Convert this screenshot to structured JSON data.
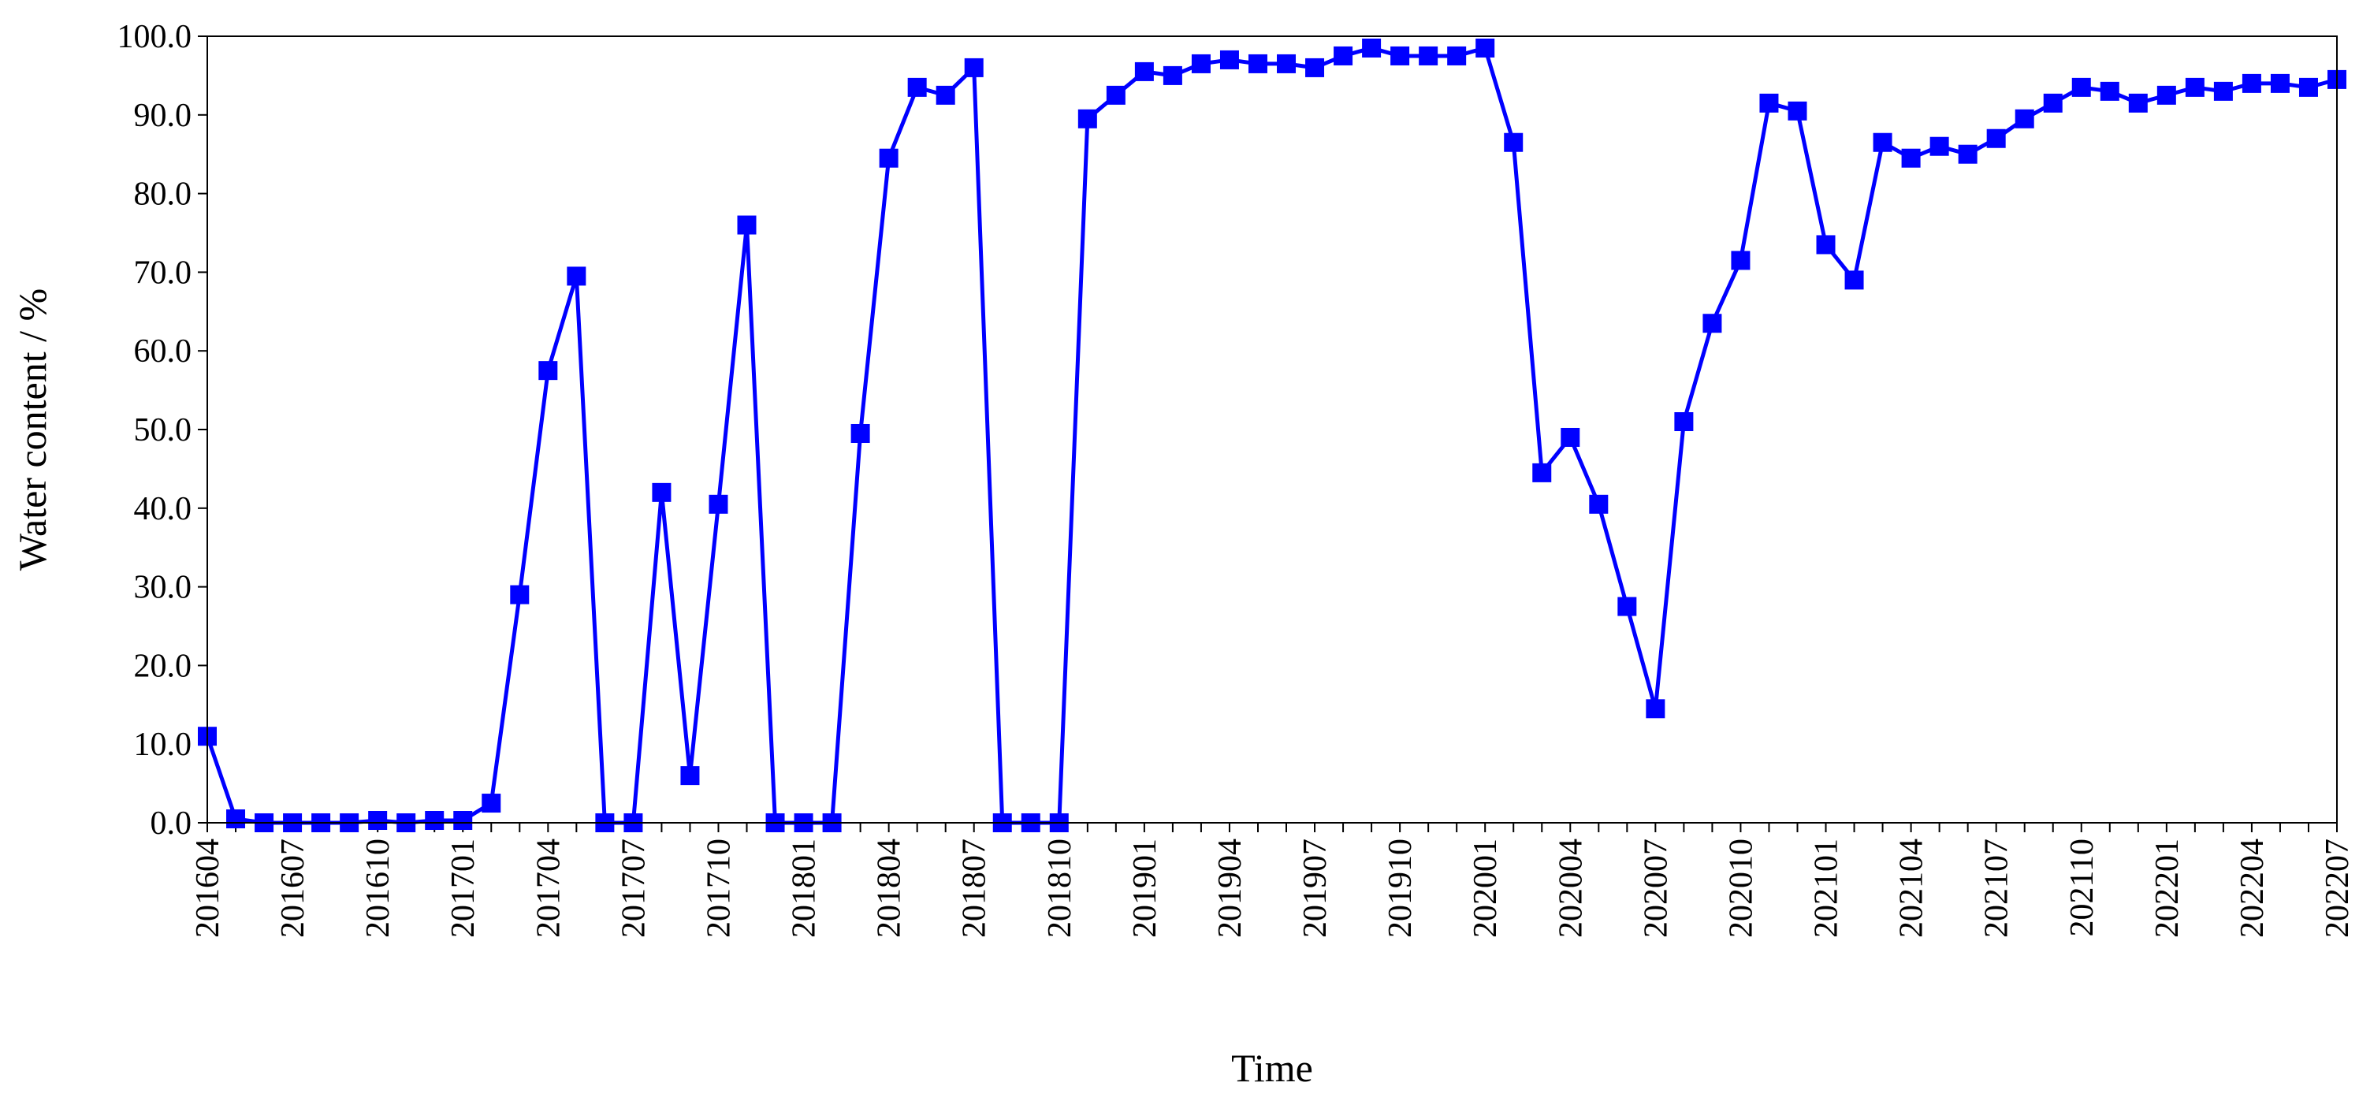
{
  "chart_data": {
    "type": "line",
    "title": "",
    "xlabel": "Time",
    "ylabel": "Water content / %",
    "ylim": [
      0,
      100
    ],
    "yticks": [
      "0.0",
      "10.0",
      "20.0",
      "30.0",
      "40.0",
      "50.0",
      "60.0",
      "70.0",
      "80.0",
      "90.0",
      "100.0"
    ],
    "xtick_labels": [
      "201604",
      "201607",
      "201610",
      "201701",
      "201704",
      "201707",
      "201710",
      "201801",
      "201804",
      "201807",
      "201810",
      "201901",
      "201904",
      "201907",
      "201910",
      "202001",
      "202004",
      "202007",
      "202010",
      "202101",
      "202104",
      "202107",
      "202110",
      "202201",
      "202204",
      "202207"
    ],
    "grid": false,
    "legend": "none",
    "marker": "square",
    "color": "#0000ff",
    "x": [
      "201604",
      "201605",
      "201606",
      "201607",
      "201608",
      "201609",
      "201610",
      "201611",
      "201612",
      "201701",
      "201702",
      "201703",
      "201704",
      "201705",
      "201706",
      "201707",
      "201708",
      "201709",
      "201710",
      "201711",
      "201712",
      "201801",
      "201802",
      "201803",
      "201804",
      "201805",
      "201806",
      "201807",
      "201808",
      "201809",
      "201810",
      "201811",
      "201812",
      "201901",
      "201902",
      "201903",
      "201904",
      "201905",
      "201906",
      "201907",
      "201908",
      "201909",
      "201910",
      "201911",
      "201912",
      "202001",
      "202002",
      "202003",
      "202004",
      "202005",
      "202006",
      "202007",
      "202008",
      "202009",
      "202010",
      "202011",
      "202012",
      "202101",
      "202102",
      "202103",
      "202104",
      "202105",
      "202106",
      "202107",
      "202108",
      "202109",
      "202110",
      "202111",
      "202112",
      "202201",
      "202202",
      "202203",
      "202204",
      "202205",
      "202206",
      "202207"
    ],
    "series": [
      {
        "values": [
          11.0,
          0.5,
          0.0,
          0.0,
          0.0,
          0.0,
          0.3,
          0.0,
          0.3,
          0.3,
          2.5,
          29.0,
          57.5,
          69.5,
          0.0,
          0.0,
          42.0,
          6.0,
          40.5,
          76.0,
          0.0,
          0.0,
          0.0,
          49.5,
          84.5,
          93.5,
          92.5,
          96.0,
          0.0,
          0.0,
          0.0,
          89.5,
          92.5,
          95.5,
          95.0,
          96.5,
          97.0,
          96.5,
          96.5,
          96.0,
          97.5,
          98.5,
          97.5,
          97.5,
          97.5,
          98.5,
          86.5,
          44.5,
          49.0,
          40.5,
          27.5,
          14.5,
          51.0,
          63.5,
          71.5,
          91.5,
          90.5,
          73.5,
          69.0,
          86.5,
          84.5,
          86.0,
          85.0,
          87.0,
          89.5,
          91.5,
          93.5,
          93.0,
          91.5,
          92.5,
          93.5,
          93.0,
          94.0,
          94.0,
          93.5,
          94.5
        ]
      }
    ]
  }
}
